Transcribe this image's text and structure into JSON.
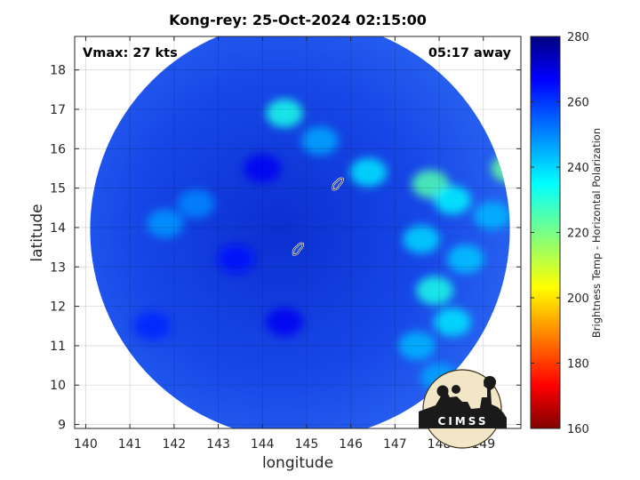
{
  "chart_data": {
    "type": "heatmap",
    "title": "Kong-rey: 25-Oct-2024 02:15:00",
    "xlabel": "longitude",
    "ylabel": "latitude",
    "xlim": [
      139.75,
      149.85
    ],
    "ylim": [
      8.9,
      18.85
    ],
    "xticks": [
      "140",
      "141",
      "142",
      "143",
      "144",
      "145",
      "146",
      "147",
      "148",
      "149"
    ],
    "yticks": [
      "9",
      "10",
      "11",
      "12",
      "13",
      "14",
      "15",
      "16",
      "17",
      "18"
    ],
    "grid": true,
    "annotations": {
      "vmax": "Vmax: 27 kts",
      "time_away": "05:17 away"
    },
    "colorbar": {
      "label": "Brightness Temp - Horizontal Polarization",
      "range": [
        160,
        280
      ],
      "ticks": [
        "280",
        "260",
        "240",
        "220",
        "200",
        "180",
        "160"
      ],
      "colormap": "jet"
    },
    "swath": {
      "shape": "circle",
      "center_lon": 144.85,
      "center_lat": 13.95,
      "radius_deg": 4.75
    },
    "islands": [
      {
        "name": "",
        "lon": 145.7,
        "lat": 15.1
      },
      {
        "name": "",
        "lon": 144.8,
        "lat": 13.45
      }
    ],
    "field_samples": [
      {
        "lon": 144.5,
        "lat": 16.9,
        "value": 232
      },
      {
        "lon": 145.3,
        "lat": 16.2,
        "value": 246
      },
      {
        "lon": 146.4,
        "lat": 15.4,
        "value": 238
      },
      {
        "lon": 147.8,
        "lat": 15.1,
        "value": 225
      },
      {
        "lon": 148.3,
        "lat": 14.7,
        "value": 236
      },
      {
        "lon": 149.2,
        "lat": 14.3,
        "value": 244
      },
      {
        "lon": 149.6,
        "lat": 15.5,
        "value": 222
      },
      {
        "lon": 147.6,
        "lat": 13.7,
        "value": 240
      },
      {
        "lon": 148.6,
        "lat": 13.2,
        "value": 242
      },
      {
        "lon": 147.9,
        "lat": 12.4,
        "value": 232
      },
      {
        "lon": 148.3,
        "lat": 11.6,
        "value": 238
      },
      {
        "lon": 147.5,
        "lat": 11.0,
        "value": 244
      },
      {
        "lon": 148.0,
        "lat": 10.2,
        "value": 246
      },
      {
        "lon": 141.8,
        "lat": 14.1,
        "value": 248
      },
      {
        "lon": 142.5,
        "lat": 14.6,
        "value": 250
      },
      {
        "lon": 143.4,
        "lat": 13.2,
        "value": 265
      },
      {
        "lon": 144.5,
        "lat": 11.6,
        "value": 268
      },
      {
        "lon": 141.5,
        "lat": 11.5,
        "value": 262
      },
      {
        "lon": 144.0,
        "lat": 15.5,
        "value": 268
      }
    ]
  },
  "logo": {
    "text": "CIMSS"
  }
}
